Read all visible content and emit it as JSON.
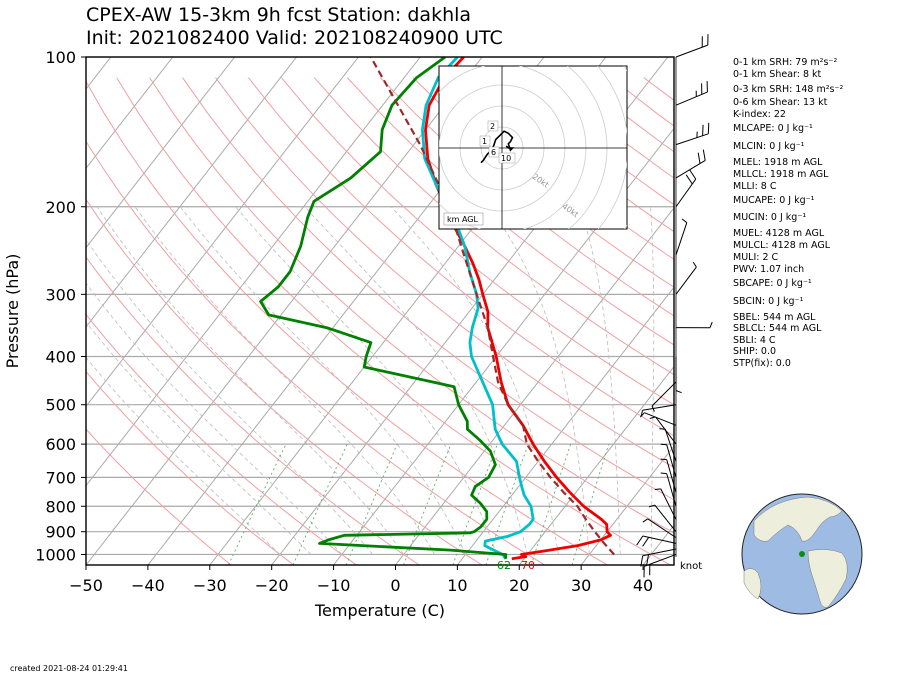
{
  "title_line1": "CPEX-AW 15-3km  9h fcst  Station: dakhla",
  "title_line2": "Init: 2021082400  Valid: 202108240900 UTC",
  "created": "created 2021-08-24 01:29:41",
  "indices": [
    {
      "label": "0-1 km SRH: 79 m²s⁻²"
    },
    {
      "label": "0-1 km Shear: 8 kt"
    },
    {
      "label": "0-3 km SRH: 148 m²s⁻²"
    },
    {
      "label": "0-6 km Shear: 13 kt"
    },
    {
      "label": "K-index: 22"
    },
    {
      "label": "MLCAPE: 0 J kg⁻¹"
    },
    {
      "label": "MLCIN: 0 J kg⁻¹"
    },
    {
      "label": "MLEL: 1918 m AGL"
    },
    {
      "label": "MLLCL: 1918 m AGL"
    },
    {
      "label": "MLLI: 8 C"
    },
    {
      "label": "MUCAPE: 0 J kg⁻¹"
    },
    {
      "label": "MUCIN: 0 J kg⁻¹"
    },
    {
      "label": "MUEL: 4128 m AGL"
    },
    {
      "label": "MULCL: 4128 m AGL"
    },
    {
      "label": "MULI: 2 C"
    },
    {
      "label": "PWV: 1.07 inch"
    },
    {
      "label": "SBCAPE: 0 J kg⁻¹"
    },
    {
      "label": "SBCIN: 0 J kg⁻¹"
    },
    {
      "label": "SBEL: 544 m AGL"
    },
    {
      "label": "SBLCL: 544 m AGL"
    },
    {
      "label": "SBLI: 4 C"
    },
    {
      "label": "SHIP: 0.0"
    },
    {
      "label": "STP(fix): 0.0"
    }
  ],
  "chart_data": {
    "type": "line",
    "subtype": "skew-T log-P",
    "xlabel": "Temperature (C)",
    "ylabel": "Pressure (hPa)",
    "xlim": [
      -50,
      45
    ],
    "ylim": [
      1050,
      100
    ],
    "x_ticks": [
      -50,
      -40,
      -30,
      -20,
      -10,
      0,
      10,
      20,
      30,
      40
    ],
    "y_ticks": [
      100,
      200,
      300,
      400,
      500,
      600,
      700,
      800,
      900,
      1000
    ],
    "surface_dewpoint_label": "62",
    "surface_temp_label": "70",
    "wind_unit_label": "knot",
    "series": [
      {
        "key": "temperature",
        "color": "#ee0000",
        "points": [
          [
            1020,
            18
          ],
          [
            1010,
            20
          ],
          [
            1000,
            19
          ],
          [
            985,
            22
          ],
          [
            960,
            27
          ],
          [
            935,
            30
          ],
          [
            915,
            31
          ],
          [
            900,
            30
          ],
          [
            870,
            29
          ],
          [
            850,
            27.5
          ],
          [
            800,
            23
          ],
          [
            750,
            19
          ],
          [
            700,
            15
          ],
          [
            650,
            11
          ],
          [
            600,
            7
          ],
          [
            550,
            3
          ],
          [
            500,
            -2
          ],
          [
            450,
            -6
          ],
          [
            400,
            -10
          ],
          [
            350,
            -15
          ],
          [
            325,
            -17
          ],
          [
            300,
            -20
          ],
          [
            280,
            -22.5
          ],
          [
            260,
            -25.5
          ],
          [
            240,
            -29
          ],
          [
            220,
            -33
          ],
          [
            200,
            -37
          ],
          [
            180,
            -41.5
          ],
          [
            160,
            -46
          ],
          [
            140,
            -50
          ],
          [
            125,
            -52.5
          ],
          [
            110,
            -53.5
          ],
          [
            100,
            -53
          ]
        ]
      },
      {
        "key": "dewpoint",
        "color": "#00bfc8",
        "points": [
          [
            1020,
            17
          ],
          [
            1000,
            16
          ],
          [
            980,
            14
          ],
          [
            960,
            12
          ],
          [
            940,
            11.5
          ],
          [
            920,
            14.5
          ],
          [
            900,
            16
          ],
          [
            870,
            16.5
          ],
          [
            850,
            16.5
          ],
          [
            800,
            14.5
          ],
          [
            760,
            12
          ],
          [
            730,
            10.5
          ],
          [
            700,
            9
          ],
          [
            650,
            6.5
          ],
          [
            600,
            2
          ],
          [
            560,
            -1
          ],
          [
            500,
            -4.5
          ],
          [
            450,
            -9
          ],
          [
            400,
            -14
          ],
          [
            375,
            -16
          ],
          [
            350,
            -17.5
          ],
          [
            320,
            -19
          ],
          [
            300,
            -21
          ],
          [
            270,
            -25
          ],
          [
            240,
            -29
          ],
          [
            220,
            -32.5
          ],
          [
            200,
            -36.5
          ],
          [
            180,
            -41.5
          ],
          [
            160,
            -46.5
          ],
          [
            140,
            -50.5
          ],
          [
            125,
            -53
          ],
          [
            110,
            -54.5
          ],
          [
            100,
            -54
          ]
        ]
      },
      {
        "key": "mixing_ratio",
        "color": "#008000",
        "points": [
          [
            1020,
            17
          ],
          [
            1000,
            16.5
          ],
          [
            980,
            7
          ],
          [
            950,
            -15
          ],
          [
            935,
            -14
          ],
          [
            915,
            -12
          ],
          [
            905,
            8
          ],
          [
            900,
            8.5
          ],
          [
            880,
            9
          ],
          [
            850,
            9
          ],
          [
            820,
            8
          ],
          [
            790,
            6
          ],
          [
            760,
            3.5
          ],
          [
            730,
            3
          ],
          [
            700,
            4
          ],
          [
            660,
            3.5
          ],
          [
            620,
            1
          ],
          [
            590,
            -2
          ],
          [
            560,
            -5.5
          ],
          [
            540,
            -6.5
          ],
          [
            500,
            -10
          ],
          [
            460,
            -13
          ],
          [
            420,
            -30
          ],
          [
            400,
            -31
          ],
          [
            375,
            -32
          ],
          [
            350,
            -41
          ],
          [
            330,
            -52
          ],
          [
            310,
            -55
          ],
          [
            290,
            -54
          ],
          [
            270,
            -54
          ],
          [
            240,
            -55.5
          ],
          [
            210,
            -58
          ],
          [
            195,
            -59
          ],
          [
            175,
            -56
          ],
          [
            155,
            -54.5
          ],
          [
            140,
            -57
          ],
          [
            125,
            -58.5
          ],
          [
            110,
            -58
          ],
          [
            100,
            -56
          ]
        ]
      },
      {
        "key": "parcel",
        "color": "#9b2a2a",
        "dashed": true,
        "points": [
          [
            1000,
            34
          ],
          [
            950,
            31
          ],
          [
            900,
            28
          ],
          [
            850,
            25
          ],
          [
            800,
            22
          ],
          [
            750,
            18
          ],
          [
            700,
            14
          ],
          [
            650,
            10
          ],
          [
            600,
            6
          ],
          [
            550,
            3
          ],
          [
            500,
            -2
          ],
          [
            450,
            -6.5
          ],
          [
            400,
            -10.5
          ],
          [
            350,
            -15
          ],
          [
            300,
            -21
          ],
          [
            250,
            -28
          ],
          [
            200,
            -36.5
          ],
          [
            150,
            -49
          ],
          [
            100,
            -68
          ]
        ]
      }
    ],
    "wind_barbs": [
      {
        "p": 1000,
        "u": -8,
        "v": -3
      },
      {
        "p": 975,
        "u": -10,
        "v": -2
      },
      {
        "p": 950,
        "u": -9,
        "v": 2
      },
      {
        "p": 925,
        "u": -6,
        "v": 4
      },
      {
        "p": 900,
        "u": -4,
        "v": 5
      },
      {
        "p": 850,
        "u": -3,
        "v": 6
      },
      {
        "p": 800,
        "u": -2,
        "v": 7
      },
      {
        "p": 750,
        "u": -2,
        "v": 7
      },
      {
        "p": 700,
        "u": -2,
        "v": 7
      },
      {
        "p": 650,
        "u": -2,
        "v": 6
      },
      {
        "p": 600,
        "u": -3,
        "v": 4
      },
      {
        "p": 550,
        "u": -5,
        "v": 2
      },
      {
        "p": 500,
        "u": -6,
        "v": -1
      },
      {
        "p": 450,
        "u": -4,
        "v": -4
      },
      {
        "p": 400,
        "u": 0,
        "v": -4
      },
      {
        "p": 350,
        "u": 5,
        "v": 0
      },
      {
        "p": 300,
        "u": 3,
        "v": 4
      },
      {
        "p": 250,
        "u": 1,
        "v": 3
      },
      {
        "p": 200,
        "u": 5,
        "v": 7
      },
      {
        "p": 175,
        "u": 10,
        "v": 6
      },
      {
        "p": 150,
        "u": 12,
        "v": 4
      },
      {
        "p": 125,
        "u": 12,
        "v": 5
      },
      {
        "p": 100,
        "u": 8,
        "v": 3
      }
    ],
    "hodograph": {
      "ring_labels": [
        "20kt",
        "40kt",
        "60kt",
        "80kt"
      ],
      "height_labels": [
        "1",
        "2",
        "6",
        "10"
      ],
      "legend": "km AGL",
      "points": [
        [
          -10,
          -7
        ],
        [
          -9,
          -6
        ],
        [
          -7,
          -3
        ],
        [
          -5,
          -1
        ],
        [
          -4,
          1
        ],
        [
          -3,
          4
        ],
        [
          -1,
          6
        ],
        [
          0,
          7
        ],
        [
          1,
          8
        ],
        [
          3,
          7
        ],
        [
          5,
          5
        ],
        [
          4,
          3
        ],
        [
          3,
          2
        ],
        [
          4,
          -1
        ],
        [
          5,
          0
        ],
        [
          3,
          0
        ],
        [
          2,
          1
        ]
      ]
    }
  }
}
